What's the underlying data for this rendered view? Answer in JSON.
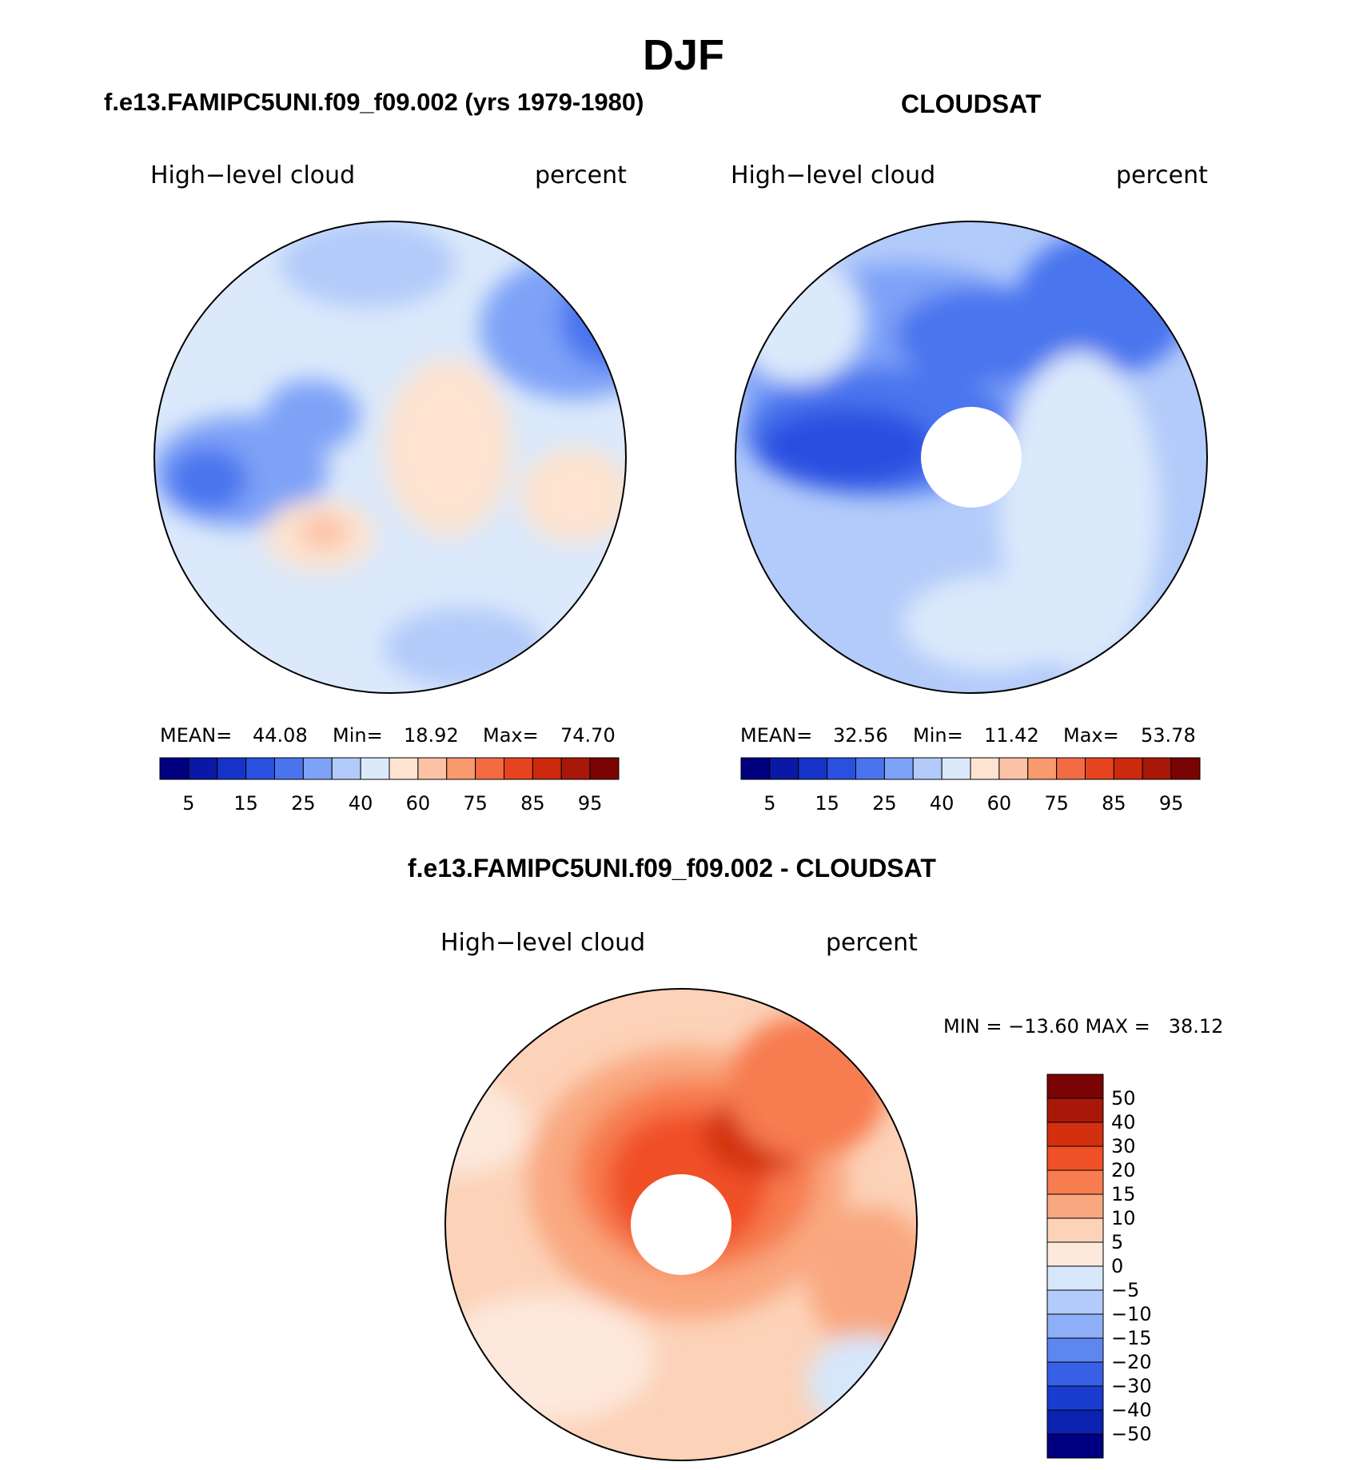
{
  "figure": {
    "season": "DJF",
    "panels": [
      {
        "title": "f.e13.FAMIPC5UNI.f09_f09.002 (yrs 1979-1980)",
        "variable": "High−level cloud",
        "units": "percent",
        "stats": {
          "mean_label": "MEAN=",
          "mean": "44.08",
          "min_label": "Min=",
          "min": "18.92",
          "max_label": "Max=",
          "max": "74.70"
        },
        "colorbar": {
          "labels": [
            "5",
            "15",
            "25",
            "40",
            "60",
            "75",
            "85",
            "95"
          ]
        }
      },
      {
        "title": "CLOUDSAT",
        "variable": "High−level cloud",
        "units": "percent",
        "stats": {
          "mean_label": "MEAN=",
          "mean": "32.56",
          "min_label": "Min=",
          "min": "11.42",
          "max_label": "Max=",
          "max": "53.78"
        },
        "colorbar": {
          "labels": [
            "5",
            "15",
            "25",
            "40",
            "60",
            "75",
            "85",
            "95"
          ]
        }
      },
      {
        "title": "f.e13.FAMIPC5UNI.f09_f09.002 - CLOUDSAT",
        "variable": "High−level cloud",
        "units": "percent",
        "stats_text": "MIN = −13.60 MAX =   38.12",
        "colorbar": {
          "labels": [
            "50",
            "40",
            "30",
            "20",
            "15",
            "10",
            "5",
            "0",
            "−5",
            "−10",
            "−15",
            "−20",
            "−30",
            "−40",
            "−50"
          ]
        }
      }
    ],
    "colors": {
      "abs_scale": [
        "#000080",
        "#0a19a5",
        "#1633c8",
        "#2a50e0",
        "#4a74ee",
        "#7ea2f7",
        "#b3cbfa",
        "#dbe9fb",
        "#fde3d0",
        "#fcc2a5",
        "#f9996e",
        "#f26b43",
        "#e6441f",
        "#cc2a0c",
        "#a81808",
        "#7a0404"
      ],
      "diff_scale": [
        "#7a0404",
        "#a81808",
        "#d3300f",
        "#f05025",
        "#f77c4f",
        "#f9a77f",
        "#fcd2b8",
        "#fde8dc",
        "#d6e7fb",
        "#b3cbfa",
        "#8eaef7",
        "#5e86ef",
        "#3860e6",
        "#1a3dd0",
        "#0c22b0",
        "#000080"
      ],
      "land_outline": "#000000"
    }
  }
}
